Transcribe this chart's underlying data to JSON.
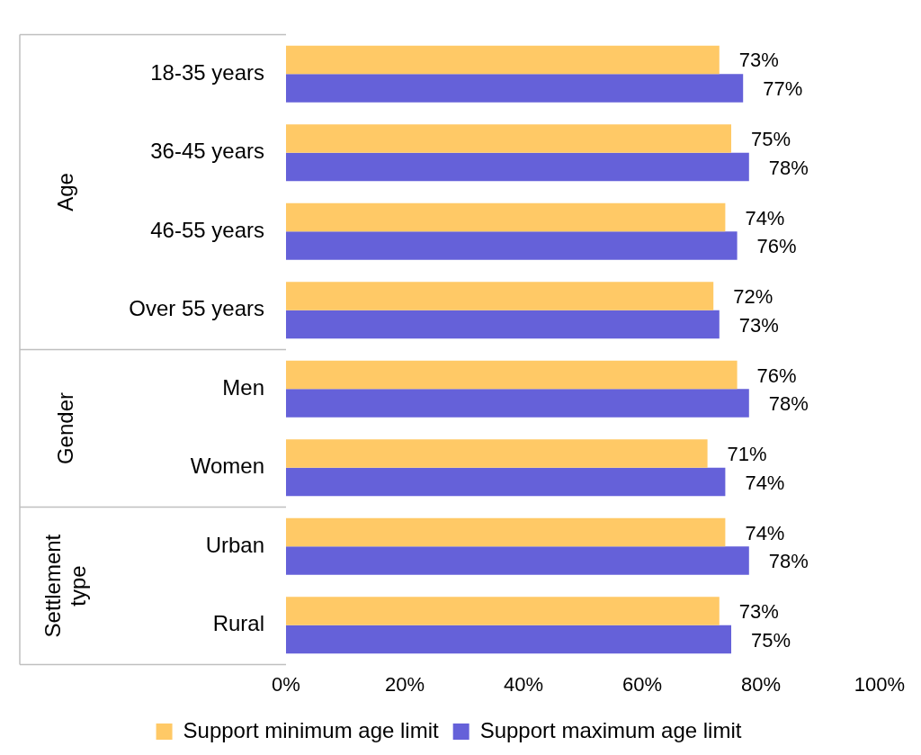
{
  "chart_data": {
    "type": "bar",
    "orientation": "horizontal",
    "categories": [
      "18-35 years",
      "36-45 years",
      "46-55 years",
      "Over 55 years",
      "Men",
      "Women",
      "Urban",
      "Rural"
    ],
    "series": [
      {
        "name": "Support minimum age limit",
        "color": "#ffc966",
        "values": [
          73,
          75,
          74,
          72,
          76,
          71,
          74,
          73
        ],
        "value_labels": [
          "73%",
          "75%",
          "74%",
          "72%",
          "76%",
          "71%",
          "74%",
          "73%"
        ]
      },
      {
        "name": "Support maximum age limit",
        "color": "#6561d9",
        "values": [
          77,
          78,
          76,
          73,
          78,
          74,
          78,
          75
        ],
        "value_labels": [
          "77%",
          "78%",
          "76%",
          "73%",
          "78%",
          "74%",
          "78%",
          "75%"
        ]
      }
    ],
    "xlim": [
      0,
      100
    ],
    "xticks": [
      {
        "value": 0,
        "label": "0%"
      },
      {
        "value": 20,
        "label": "20%"
      },
      {
        "value": 40,
        "label": "40%"
      },
      {
        "value": 60,
        "label": "60%"
      },
      {
        "value": 80,
        "label": "80%"
      },
      {
        "value": 100,
        "label": "100%"
      }
    ],
    "annotations": [
      "Age",
      "Gender",
      "Settlement type"
    ],
    "legend": "bottom"
  }
}
